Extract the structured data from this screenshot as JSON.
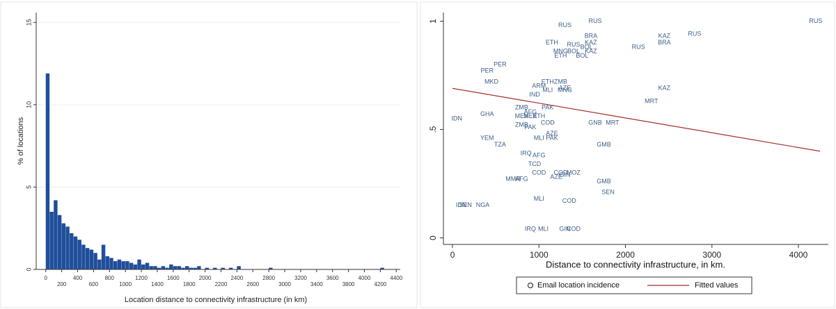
{
  "chart_data": [
    {
      "type": "histogram",
      "xlabel": "Location distance to connectivity infrastructure (in km)",
      "ylabel": "% of locations",
      "color": "#1f4e9a",
      "bins": [
        0,
        50,
        100,
        150,
        200,
        250,
        300,
        350,
        400,
        450,
        500,
        550,
        600,
        650,
        700,
        750,
        800,
        850,
        900,
        950,
        1000,
        1050,
        1100,
        1150,
        1200,
        1250,
        1300,
        1350,
        1400,
        1450,
        1500,
        1550,
        1600,
        1650,
        1700,
        1750,
        1800,
        1850,
        1900,
        1950,
        2000,
        2050,
        2100,
        2150,
        2200,
        2250,
        2300,
        2350,
        2400,
        2450,
        2500,
        2550,
        2600,
        2650,
        2700,
        2750,
        2800,
        2850,
        2900,
        2950,
        3000,
        3050,
        3100,
        3150,
        3200,
        3250,
        3300,
        3350,
        3400,
        3450,
        3500,
        3550,
        3600,
        3650,
        3700,
        3750,
        3800,
        3850,
        3900,
        3950,
        4000,
        4050,
        4100,
        4150,
        4200,
        4250,
        4300,
        4350,
        4400
      ],
      "values": [
        11.9,
        3.5,
        4.2,
        3.3,
        2.8,
        2.6,
        2.2,
        2.0,
        1.8,
        1.5,
        1.3,
        1.2,
        1.0,
        0.6,
        1.5,
        0.8,
        0.7,
        0.5,
        0.6,
        0.5,
        0.5,
        0.4,
        0.3,
        0.6,
        0.3,
        0.4,
        0.2,
        0.2,
        0.1,
        0.2,
        0.1,
        0.3,
        0.2,
        0.2,
        0.1,
        0.2,
        0.1,
        0.1,
        0.2,
        0,
        0.1,
        0,
        0.1,
        0,
        0.1,
        0,
        0.1,
        0,
        0.2,
        0,
        0,
        0,
        0,
        0,
        0,
        0,
        0.1,
        0,
        0,
        0,
        0,
        0,
        0,
        0,
        0,
        0,
        0,
        0,
        0,
        0,
        0,
        0,
        0,
        0,
        0,
        0,
        0,
        0,
        0,
        0,
        0,
        0,
        0,
        0,
        0.1,
        0,
        0,
        0
      ],
      "xlim": [
        -120,
        4450
      ],
      "ylim": [
        0,
        15.6
      ],
      "xticks": [
        0,
        200,
        400,
        600,
        800,
        1000,
        1200,
        1400,
        1600,
        1800,
        2000,
        2200,
        2400,
        2600,
        2800,
        3000,
        3200,
        3400,
        3600,
        3800,
        4000,
        4200,
        4400
      ],
      "yticks": [
        0,
        5,
        10,
        15
      ],
      "grid": true
    },
    {
      "type": "scatter",
      "xlabel": "Distance to connectivity infrastructure, in km.",
      "xlim": [
        -105,
        4346
      ],
      "ylim": [
        -0.03,
        1.04
      ],
      "xticks": [
        0,
        1000,
        2000,
        3000,
        4000
      ],
      "yticks": [
        0,
        {
          "value": 0.5,
          "label": ".5"
        },
        1
      ],
      "series": [
        {
          "name": "Email location incidence",
          "color": "#3d5f86",
          "labels": [
            "RUS",
            "RUS",
            "RUS",
            "KAZ",
            "RUS",
            "BRA",
            "BRA",
            "KAZ",
            "RUS",
            "BOL",
            "KAZ",
            "RUS",
            "ETH",
            "MNG",
            "BOL",
            "ETH",
            "ZMB",
            "MLI",
            "ARM",
            "AZE",
            "IND",
            "MNG",
            "KAZ",
            "MRT",
            "PAK",
            "ZMB",
            "AFG",
            "ETH",
            "MEX",
            "MEX",
            "COD",
            "ZMB",
            "PAK",
            "GNB",
            "MRT",
            "AZE",
            "MLI",
            "PAK",
            "GMB",
            "AFG",
            "IRQ",
            "TCD",
            "COD",
            "COD",
            "MOZ",
            "GIN",
            "AZE",
            "GMB",
            "SEN",
            "COD",
            "MLI",
            "IRQ",
            "MLI",
            "GIN",
            "COD",
            "PER",
            "MKD",
            "YEM",
            "TZA",
            "MMR",
            "AFG",
            "SEN",
            "IDN",
            "IDN",
            "NGA",
            "GHA",
            "PER",
            "ETH",
            "BOL"
          ],
          "x": [
            1650,
            4200,
            1300,
            2450,
            2800,
            1600,
            2450,
            1600,
            2150,
            1550,
            1600,
            1400,
            1150,
            1250,
            1500,
            1100,
            1250,
            1100,
            1000,
            1300,
            950,
            1300,
            2450,
            2300,
            1100,
            800,
            900,
            1000,
            800,
            900,
            1100,
            800,
            900,
            1650,
            1850,
            1150,
            1000,
            1150,
            1750,
            1000,
            850,
            950,
            1000,
            1250,
            1400,
            1300,
            1200,
            1750,
            1800,
            1350,
            1000,
            900,
            1050,
            1300,
            1400,
            550,
            450,
            400,
            550,
            700,
            800,
            150,
            50,
            100,
            350,
            400,
            400,
            1250,
            1400
          ],
          "values": [
            1.0,
            1.0,
            0.98,
            0.93,
            0.94,
            0.93,
            0.9,
            0.9,
            0.88,
            0.88,
            0.86,
            0.89,
            0.9,
            0.86,
            0.84,
            0.72,
            0.72,
            0.68,
            0.7,
            0.69,
            0.66,
            0.68,
            0.69,
            0.63,
            0.6,
            0.6,
            0.58,
            0.56,
            0.56,
            0.56,
            0.53,
            0.52,
            0.51,
            0.53,
            0.53,
            0.48,
            0.46,
            0.46,
            0.43,
            0.38,
            0.39,
            0.34,
            0.3,
            0.3,
            0.3,
            0.29,
            0.28,
            0.26,
            0.21,
            0.17,
            0.18,
            0.04,
            0.04,
            0.04,
            0.04,
            0.8,
            0.72,
            0.46,
            0.43,
            0.27,
            0.27,
            0.15,
            0.55,
            0.15,
            0.15,
            0.57,
            0.77,
            0.84,
            0.86
          ]
        },
        {
          "name": "Fitted values",
          "color": "#a52a2a",
          "x": [
            0,
            4250
          ],
          "values": [
            0.69,
            0.4
          ]
        }
      ]
    }
  ]
}
